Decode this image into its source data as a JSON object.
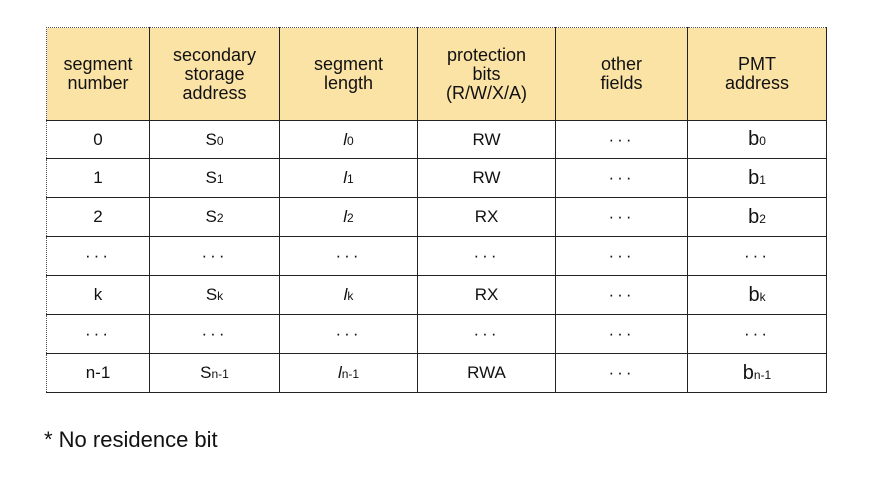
{
  "table": {
    "headers": [
      [
        "segment",
        "number"
      ],
      [
        "secondary",
        "storage",
        "address"
      ],
      [
        "segment",
        "length"
      ],
      [
        "protection",
        "bits",
        "(R/W/X/A)"
      ],
      [
        "other",
        "fields"
      ],
      [
        "PMT",
        "address"
      ]
    ],
    "rows": [
      {
        "segment_number": "0",
        "storage_base": "S",
        "storage_sub": "0",
        "length_base": "l",
        "length_sub": "0",
        "protection": "RW",
        "other": "···",
        "pmt_base": "b",
        "pmt_sub": "0"
      },
      {
        "segment_number": "1",
        "storage_base": "S",
        "storage_sub": "1",
        "length_base": "l",
        "length_sub": "1",
        "protection": "RW",
        "other": "···",
        "pmt_base": "b",
        "pmt_sub": "1"
      },
      {
        "segment_number": "2",
        "storage_base": "S",
        "storage_sub": "2",
        "length_base": "l",
        "length_sub": "2",
        "protection": "RX",
        "other": "···",
        "pmt_base": "b",
        "pmt_sub": "2"
      },
      {
        "segment_number": "···",
        "storage_base": "···",
        "storage_sub": "",
        "length_base": "···",
        "length_sub": "",
        "protection": "···",
        "other": "···",
        "pmt_base": "···",
        "pmt_sub": ""
      },
      {
        "segment_number": "k",
        "storage_base": "S",
        "storage_sub": "k",
        "length_base": "l",
        "length_sub": "k",
        "protection": "RX",
        "other": "···",
        "pmt_base": "b",
        "pmt_sub": "k"
      },
      {
        "segment_number": "···",
        "storage_base": "···",
        "storage_sub": "",
        "length_base": "···",
        "length_sub": "",
        "protection": "···",
        "other": "···",
        "pmt_base": "···",
        "pmt_sub": ""
      },
      {
        "segment_number": "n-1",
        "storage_base": "S",
        "storage_sub": "n-1",
        "length_base": "l",
        "length_sub": "n-1",
        "protection": "RWA",
        "other": "···",
        "pmt_base": "b",
        "pmt_sub": "n-1"
      }
    ]
  },
  "footnote": "* No residence bit",
  "colors": {
    "header_background": "#fbe3a6",
    "border": "#222222",
    "text": "#111111"
  }
}
